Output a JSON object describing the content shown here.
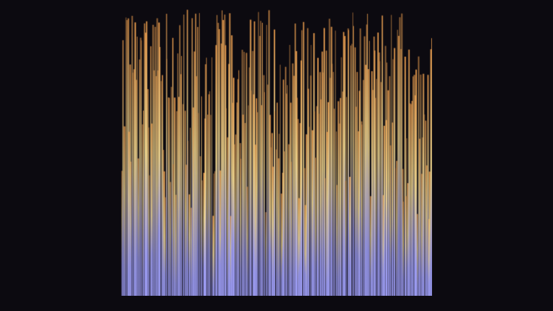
{
  "visual": {
    "background": "#0c0a10",
    "bar_colors": {
      "top": "#e89a4c",
      "middle": "#f6dc92",
      "bottom": "#a4a4ff"
    },
    "bar_count": 300
  }
}
